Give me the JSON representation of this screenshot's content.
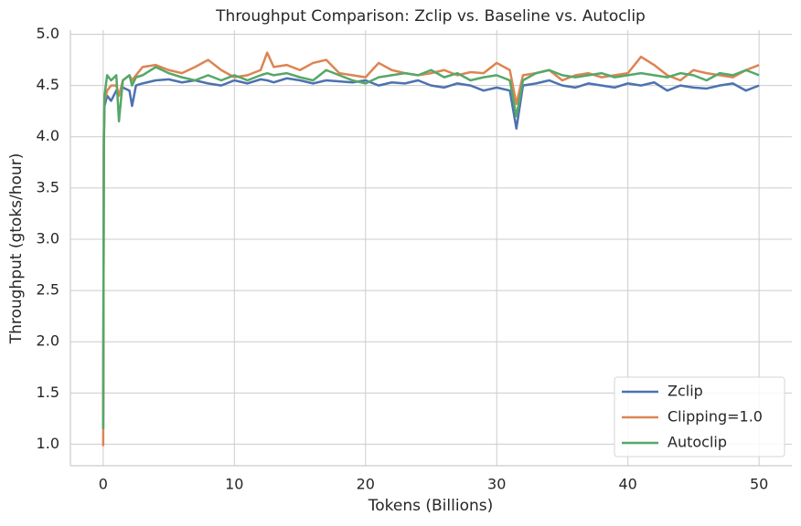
{
  "chart_data": {
    "type": "line",
    "title": "Throughput Comparison: Zclip vs. Baseline vs. Autoclip",
    "x_label": "Tokens (Billions)",
    "y_label": "Throughput (gtoks/hour)",
    "x": [
      0,
      0.05,
      0.1,
      0.3,
      0.6,
      1,
      1.2,
      1.5,
      2,
      2.2,
      2.5,
      3,
      4,
      5,
      6,
      7,
      8,
      9,
      10,
      11,
      12,
      12.5,
      13,
      14,
      15,
      16,
      17,
      18,
      19,
      20,
      21,
      22,
      23,
      24,
      25,
      26,
      27,
      28,
      29,
      30,
      31,
      31.5,
      32,
      33,
      34,
      35,
      36,
      37,
      38,
      39,
      40,
      41,
      42,
      43,
      44,
      45,
      46,
      47,
      48,
      49,
      50
    ],
    "series": [
      {
        "name": "Zclip",
        "color": "#4c72b0",
        "values": [
          1.15,
          3.9,
          4.3,
          4.4,
          4.35,
          4.45,
          4.42,
          4.48,
          4.45,
          4.3,
          4.5,
          4.52,
          4.55,
          4.56,
          4.53,
          4.55,
          4.52,
          4.5,
          4.55,
          4.52,
          4.56,
          4.55,
          4.53,
          4.57,
          4.55,
          4.52,
          4.55,
          4.54,
          4.53,
          4.55,
          4.5,
          4.53,
          4.52,
          4.55,
          4.5,
          4.48,
          4.52,
          4.5,
          4.45,
          4.48,
          4.45,
          4.08,
          4.5,
          4.52,
          4.55,
          4.5,
          4.48,
          4.52,
          4.5,
          4.48,
          4.52,
          4.5,
          4.53,
          4.45,
          4.5,
          4.48,
          4.47,
          4.5,
          4.52,
          4.45,
          4.5
        ]
      },
      {
        "name": "Clipping=1.0",
        "color": "#dd8452",
        "values": [
          0.98,
          4.0,
          4.35,
          4.45,
          4.5,
          4.5,
          4.4,
          4.55,
          4.6,
          4.55,
          4.6,
          4.68,
          4.7,
          4.65,
          4.62,
          4.68,
          4.75,
          4.65,
          4.58,
          4.6,
          4.65,
          4.82,
          4.68,
          4.7,
          4.65,
          4.72,
          4.75,
          4.62,
          4.6,
          4.58,
          4.72,
          4.65,
          4.62,
          4.6,
          4.62,
          4.65,
          4.6,
          4.63,
          4.62,
          4.72,
          4.65,
          4.32,
          4.6,
          4.62,
          4.65,
          4.55,
          4.6,
          4.62,
          4.58,
          4.6,
          4.62,
          4.78,
          4.7,
          4.6,
          4.55,
          4.65,
          4.62,
          4.6,
          4.58,
          4.65,
          4.7
        ]
      },
      {
        "name": "Autoclip",
        "color": "#55a868",
        "values": [
          1.15,
          4.0,
          4.4,
          4.6,
          4.55,
          4.6,
          4.15,
          4.55,
          4.6,
          4.5,
          4.58,
          4.6,
          4.68,
          4.62,
          4.58,
          4.55,
          4.6,
          4.55,
          4.6,
          4.55,
          4.6,
          4.62,
          4.6,
          4.62,
          4.58,
          4.55,
          4.65,
          4.6,
          4.55,
          4.52,
          4.58,
          4.6,
          4.62,
          4.6,
          4.65,
          4.58,
          4.62,
          4.55,
          4.58,
          4.6,
          4.55,
          4.2,
          4.55,
          4.62,
          4.65,
          4.6,
          4.58,
          4.6,
          4.62,
          4.58,
          4.6,
          4.62,
          4.6,
          4.58,
          4.62,
          4.6,
          4.55,
          4.62,
          4.6,
          4.65,
          4.6
        ]
      }
    ],
    "xlim": [
      -2.5,
      52.5
    ],
    "ylim": [
      0.79,
      5.04
    ],
    "xticks": [
      0,
      10,
      20,
      30,
      40,
      50
    ],
    "yticks": [
      {
        "value": 1,
        "label": "1.0"
      },
      1.5,
      {
        "value": 2,
        "label": "2.0"
      },
      2.5,
      {
        "value": 3,
        "label": "3.0"
      },
      3.5,
      {
        "value": 4,
        "label": "4.0"
      },
      4.5,
      {
        "value": 5,
        "label": "5.0"
      }
    ],
    "grid": true,
    "legend": "lower-right"
  }
}
